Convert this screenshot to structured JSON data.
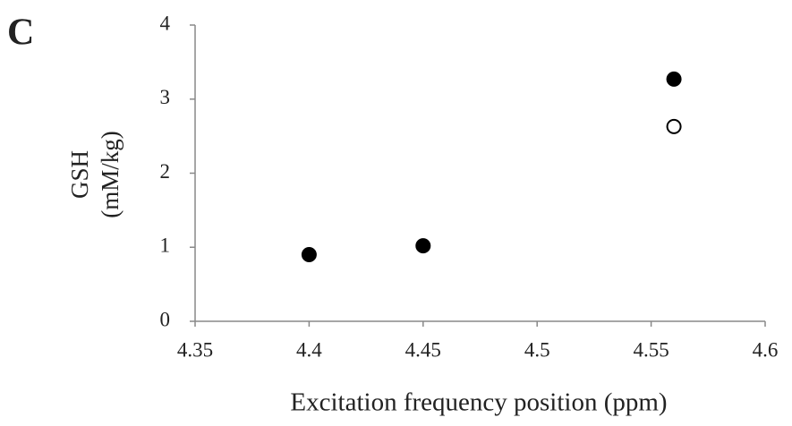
{
  "chart_data": {
    "type": "scatter",
    "panel_label": "C",
    "xlabel": "Excitation frequency position (ppm)",
    "ylabel": [
      "GSH",
      "(mM/kg)"
    ],
    "xlim": [
      4.35,
      4.6
    ],
    "xticks": [
      4.35,
      4.4,
      4.45,
      4.5,
      4.55,
      4.6
    ],
    "ylim": [
      0,
      4
    ],
    "yticks": [
      0,
      1,
      2,
      3,
      4
    ],
    "grid": false,
    "series": [
      {
        "color": "#000000",
        "marker": "filled",
        "x": [
          4.4,
          4.45,
          4.56
        ],
        "values": [
          0.9,
          1.02,
          3.27
        ]
      },
      {
        "color": "#000000",
        "marker": "open",
        "x": [
          4.56
        ],
        "values": [
          2.63
        ]
      }
    ]
  }
}
